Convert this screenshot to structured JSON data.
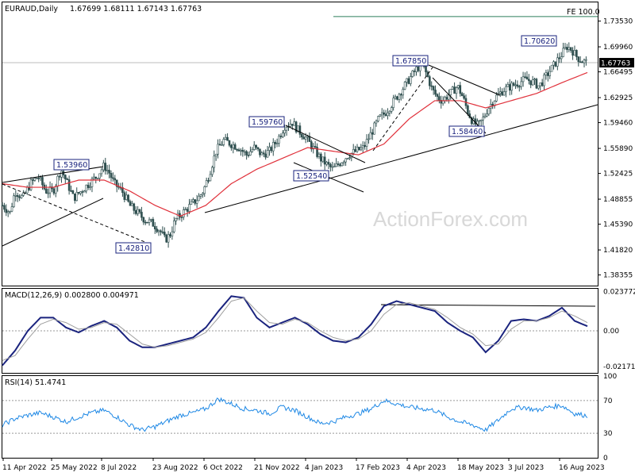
{
  "chart_data": [
    {
      "type": "candlestick",
      "title": "EURAUD,Daily",
      "ohlc_readout": "1.67699 1.68111 1.67143 1.67763",
      "watermark": "ActionForex.com",
      "ylim": [
        1.3688,
        1.7612
      ],
      "y_ticks": [
        "1.73530",
        "1.69960",
        "1.66495",
        "1.62925",
        "1.59460",
        "1.55890",
        "1.52425",
        "1.48855",
        "1.45390",
        "1.41820",
        "1.38355"
      ],
      "y_tick_values": [
        1.7353,
        1.6996,
        1.66495,
        1.62925,
        1.5946,
        1.5589,
        1.52425,
        1.48855,
        1.4539,
        1.4182,
        1.38355
      ],
      "x_ticks": [
        "11 Apr 2022",
        "25 May 2022",
        "8 Jul 2022",
        "23 Aug 2022",
        "6 Oct 2022",
        "21 Nov 2022",
        "4 Jan 2023",
        "17 Feb 2023",
        "4 Apr 2023",
        "18 May 2023",
        "3 Jul 2023",
        "16 Aug 2023"
      ],
      "current_price": "1.67763",
      "fe_label": "FE 100.0",
      "fe_level": 1.7415,
      "moving_average_color": "#e0303a",
      "candle_color": "#2f4f4f",
      "close_path": [
        [
          0,
          1.48
        ],
        [
          6,
          1.47
        ],
        [
          10,
          1.5
        ],
        [
          16,
          1.49
        ],
        [
          22,
          1.51
        ],
        [
          28,
          1.52
        ],
        [
          34,
          1.5
        ],
        [
          40,
          1.5
        ],
        [
          46,
          1.53
        ],
        [
          50,
          1.515
        ],
        [
          56,
          1.49
        ],
        [
          62,
          1.5
        ],
        [
          68,
          1.51
        ],
        [
          74,
          1.52
        ],
        [
          80,
          1.535
        ],
        [
          84,
          1.525
        ],
        [
          88,
          1.51
        ],
        [
          94,
          1.5
        ],
        [
          100,
          1.48
        ],
        [
          106,
          1.47
        ],
        [
          112,
          1.46
        ],
        [
          118,
          1.455
        ],
        [
          124,
          1.445
        ],
        [
          128,
          1.432
        ],
        [
          132,
          1.44
        ],
        [
          136,
          1.46
        ],
        [
          142,
          1.47
        ],
        [
          148,
          1.48
        ],
        [
          154,
          1.49
        ],
        [
          158,
          1.5
        ],
        [
          162,
          1.52
        ],
        [
          168,
          1.555
        ],
        [
          174,
          1.57
        ],
        [
          180,
          1.565
        ],
        [
          186,
          1.56
        ],
        [
          192,
          1.55
        ],
        [
          198,
          1.56
        ],
        [
          204,
          1.55
        ],
        [
          210,
          1.555
        ],
        [
          216,
          1.57
        ],
        [
          222,
          1.59
        ],
        [
          228,
          1.595
        ],
        [
          232,
          1.585
        ],
        [
          238,
          1.575
        ],
        [
          244,
          1.56
        ],
        [
          250,
          1.545
        ],
        [
          256,
          1.535
        ],
        [
          260,
          1.53
        ],
        [
          266,
          1.54
        ],
        [
          272,
          1.55
        ],
        [
          278,
          1.555
        ],
        [
          284,
          1.56
        ],
        [
          290,
          1.58
        ],
        [
          296,
          1.6
        ],
        [
          302,
          1.61
        ],
        [
          308,
          1.625
        ],
        [
          314,
          1.64
        ],
        [
          320,
          1.655
        ],
        [
          326,
          1.67
        ],
        [
          330,
          1.675
        ],
        [
          334,
          1.66
        ],
        [
          338,
          1.64
        ],
        [
          342,
          1.63
        ],
        [
          346,
          1.625
        ],
        [
          352,
          1.635
        ],
        [
          358,
          1.645
        ],
        [
          362,
          1.63
        ],
        [
          366,
          1.61
        ],
        [
          370,
          1.595
        ],
        [
          374,
          1.59
        ],
        [
          378,
          1.6
        ],
        [
          382,
          1.615
        ],
        [
          388,
          1.63
        ],
        [
          394,
          1.64
        ],
        [
          400,
          1.645
        ],
        [
          406,
          1.65
        ],
        [
          412,
          1.655
        ],
        [
          418,
          1.65
        ],
        [
          422,
          1.645
        ],
        [
          428,
          1.66
        ],
        [
          434,
          1.675
        ],
        [
          440,
          1.69
        ],
        [
          444,
          1.7
        ],
        [
          448,
          1.695
        ],
        [
          452,
          1.685
        ],
        [
          456,
          1.68
        ],
        [
          460,
          1.6776
        ]
      ],
      "ma_path": [
        [
          0,
          1.51
        ],
        [
          20,
          1.505
        ],
        [
          40,
          1.505
        ],
        [
          60,
          1.515
        ],
        [
          80,
          1.515
        ],
        [
          100,
          1.5
        ],
        [
          120,
          1.48
        ],
        [
          140,
          1.465
        ],
        [
          160,
          1.48
        ],
        [
          180,
          1.51
        ],
        [
          200,
          1.53
        ],
        [
          220,
          1.545
        ],
        [
          240,
          1.56
        ],
        [
          260,
          1.555
        ],
        [
          280,
          1.55
        ],
        [
          300,
          1.565
        ],
        [
          320,
          1.6
        ],
        [
          340,
          1.625
        ],
        [
          360,
          1.625
        ],
        [
          380,
          1.615
        ],
        [
          400,
          1.625
        ],
        [
          420,
          1.635
        ],
        [
          440,
          1.65
        ],
        [
          460,
          1.664
        ]
      ],
      "swing_labels": [
        {
          "text": "1.53960",
          "value": 1.5396
        },
        {
          "text": "1.42810",
          "value": 1.4281
        },
        {
          "text": "1.59760",
          "value": 1.5976
        },
        {
          "text": "1.52540",
          "value": 1.5254
        },
        {
          "text": "1.67850",
          "value": 1.6785
        },
        {
          "text": "1.58460",
          "value": 1.5846
        },
        {
          "text": "1.70620",
          "value": 1.7062
        }
      ]
    },
    {
      "type": "line",
      "title": "MACD(12,26,9) 0.002800 0.004971",
      "ylim": [
        -0.0255,
        0.0255
      ],
      "y_ticks": [
        "0.023772",
        "0.00",
        "-0.021716"
      ],
      "y_tick_values": [
        0.023772,
        0.0,
        -0.021716
      ],
      "series": [
        {
          "color": "#1a237e",
          "path": [
            [
              0,
              -0.021
            ],
            [
              10,
              -0.012
            ],
            [
              20,
              0.0
            ],
            [
              30,
              0.008
            ],
            [
              40,
              0.008
            ],
            [
              50,
              0.002
            ],
            [
              60,
              -0.001
            ],
            [
              70,
              0.003
            ],
            [
              80,
              0.006
            ],
            [
              90,
              0.002
            ],
            [
              100,
              -0.006
            ],
            [
              110,
              -0.01
            ],
            [
              120,
              -0.01
            ],
            [
              130,
              -0.008
            ],
            [
              140,
              -0.006
            ],
            [
              150,
              -0.004
            ],
            [
              160,
              0.002
            ],
            [
              170,
              0.012
            ],
            [
              180,
              0.021
            ],
            [
              190,
              0.02
            ],
            [
              200,
              0.008
            ],
            [
              210,
              0.002
            ],
            [
              220,
              0.005
            ],
            [
              230,
              0.008
            ],
            [
              240,
              0.004
            ],
            [
              250,
              -0.002
            ],
            [
              260,
              -0.006
            ],
            [
              270,
              -0.007
            ],
            [
              280,
              -0.004
            ],
            [
              290,
              0.004
            ],
            [
              300,
              0.015
            ],
            [
              310,
              0.018
            ],
            [
              320,
              0.016
            ],
            [
              330,
              0.014
            ],
            [
              340,
              0.012
            ],
            [
              350,
              0.005
            ],
            [
              360,
              0.0
            ],
            [
              370,
              -0.004
            ],
            [
              380,
              -0.013
            ],
            [
              390,
              -0.006
            ],
            [
              400,
              0.006
            ],
            [
              410,
              0.007
            ],
            [
              420,
              0.006
            ],
            [
              430,
              0.009
            ],
            [
              440,
              0.014
            ],
            [
              450,
              0.006
            ],
            [
              460,
              0.0028
            ]
          ]
        },
        {
          "color": "#9e9e9e",
          "path": [
            [
              0,
              -0.018
            ],
            [
              10,
              -0.015
            ],
            [
              20,
              -0.005
            ],
            [
              30,
              0.004
            ],
            [
              40,
              0.007
            ],
            [
              50,
              0.005
            ],
            [
              60,
              0.001
            ],
            [
              70,
              0.002
            ],
            [
              80,
              0.005
            ],
            [
              90,
              0.004
            ],
            [
              100,
              -0.002
            ],
            [
              110,
              -0.008
            ],
            [
              120,
              -0.01
            ],
            [
              130,
              -0.009
            ],
            [
              140,
              -0.007
            ],
            [
              150,
              -0.005
            ],
            [
              160,
              -0.001
            ],
            [
              170,
              0.008
            ],
            [
              180,
              0.018
            ],
            [
              190,
              0.02
            ],
            [
              200,
              0.012
            ],
            [
              210,
              0.005
            ],
            [
              220,
              0.004
            ],
            [
              230,
              0.007
            ],
            [
              240,
              0.005
            ],
            [
              250,
              0.0
            ],
            [
              260,
              -0.004
            ],
            [
              270,
              -0.006
            ],
            [
              280,
              -0.005
            ],
            [
              290,
              0.0
            ],
            [
              300,
              0.01
            ],
            [
              310,
              0.016
            ],
            [
              320,
              0.017
            ],
            [
              330,
              0.015
            ],
            [
              340,
              0.013
            ],
            [
              350,
              0.008
            ],
            [
              360,
              0.002
            ],
            [
              370,
              -0.002
            ],
            [
              380,
              -0.009
            ],
            [
              390,
              -0.008
            ],
            [
              400,
              0.001
            ],
            [
              410,
              0.006
            ],
            [
              420,
              0.006
            ],
            [
              430,
              0.008
            ],
            [
              440,
              0.012
            ],
            [
              450,
              0.009
            ],
            [
              460,
              0.004971
            ]
          ]
        }
      ]
    },
    {
      "type": "line",
      "title": "RSI(14) 51.4741",
      "ylim": [
        0,
        100
      ],
      "y_ticks": [
        "100",
        "70",
        "30",
        "0"
      ],
      "y_tick_values": [
        100,
        70,
        30,
        0
      ],
      "series": [
        {
          "color": "#1e88e5",
          "path": [
            [
              0,
              40
            ],
            [
              10,
              48
            ],
            [
              20,
              52
            ],
            [
              30,
              55
            ],
            [
              40,
              50
            ],
            [
              50,
              44
            ],
            [
              60,
              50
            ],
            [
              70,
              55
            ],
            [
              80,
              58
            ],
            [
              90,
              50
            ],
            [
              100,
              40
            ],
            [
              110,
              34
            ],
            [
              120,
              38
            ],
            [
              130,
              45
            ],
            [
              140,
              52
            ],
            [
              150,
              55
            ],
            [
              160,
              60
            ],
            [
              170,
              72
            ],
            [
              180,
              66
            ],
            [
              190,
              60
            ],
            [
              200,
              58
            ],
            [
              210,
              54
            ],
            [
              220,
              62
            ],
            [
              230,
              58
            ],
            [
              240,
              50
            ],
            [
              250,
              42
            ],
            [
              260,
              44
            ],
            [
              270,
              50
            ],
            [
              280,
              54
            ],
            [
              290,
              60
            ],
            [
              300,
              70
            ],
            [
              310,
              66
            ],
            [
              320,
              62
            ],
            [
              330,
              60
            ],
            [
              340,
              58
            ],
            [
              350,
              50
            ],
            [
              360,
              44
            ],
            [
              370,
              40
            ],
            [
              380,
              34
            ],
            [
              390,
              46
            ],
            [
              400,
              60
            ],
            [
              410,
              62
            ],
            [
              420,
              58
            ],
            [
              430,
              62
            ],
            [
              440,
              64
            ],
            [
              450,
              54
            ],
            [
              460,
              51.47
            ]
          ]
        }
      ]
    }
  ]
}
